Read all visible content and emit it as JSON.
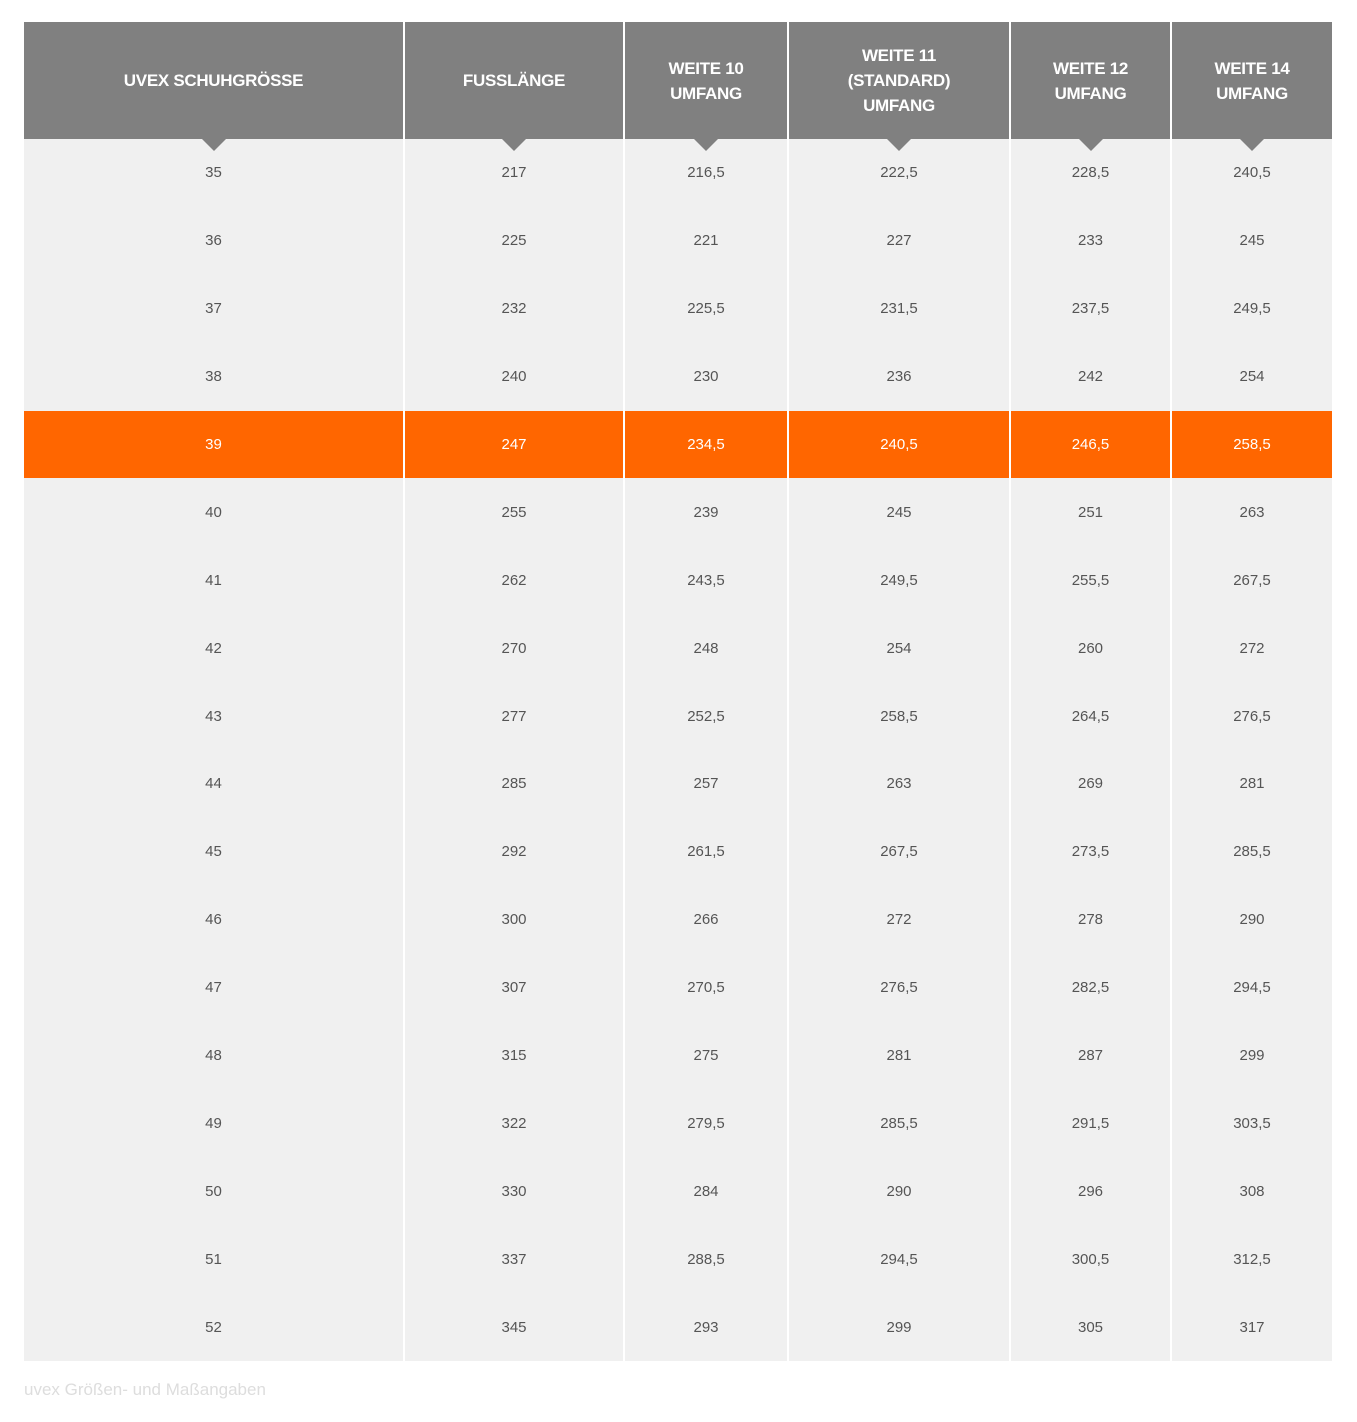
{
  "table": {
    "headers": [
      "UVEX SCHUHGRÖSSE",
      "FUSSLÄNGE",
      "WEITE 10 UMFANG",
      "WEITE 11 (STANDARD) UMFANG",
      "WEITE 12 UMFANG",
      "WEITE 14 UMFANG"
    ],
    "highlight_row": 4,
    "highlight_color": "#ff6600",
    "rows": [
      [
        "35",
        "217",
        "216,5",
        "222,5",
        "228,5",
        "240,5"
      ],
      [
        "36",
        "225",
        "221",
        "227",
        "233",
        "245"
      ],
      [
        "37",
        "232",
        "225,5",
        "231,5",
        "237,5",
        "249,5"
      ],
      [
        "38",
        "240",
        "230",
        "236",
        "242",
        "254"
      ],
      [
        "39",
        "247",
        "234,5",
        "240,5",
        "246,5",
        "258,5"
      ],
      [
        "40",
        "255",
        "239",
        "245",
        "251",
        "263"
      ],
      [
        "41",
        "262",
        "243,5",
        "249,5",
        "255,5",
        "267,5"
      ],
      [
        "42",
        "270",
        "248",
        "254",
        "260",
        "272"
      ],
      [
        "43",
        "277",
        "252,5",
        "258,5",
        "264,5",
        "276,5"
      ],
      [
        "44",
        "285",
        "257",
        "263",
        "269",
        "281"
      ],
      [
        "45",
        "292",
        "261,5",
        "267,5",
        "273,5",
        "285,5"
      ],
      [
        "46",
        "300",
        "266",
        "272",
        "278",
        "290"
      ],
      [
        "47",
        "307",
        "270,5",
        "276,5",
        "282,5",
        "294,5"
      ],
      [
        "48",
        "315",
        "275",
        "281",
        "287",
        "299"
      ],
      [
        "49",
        "322",
        "279,5",
        "285,5",
        "291,5",
        "303,5"
      ],
      [
        "50",
        "330",
        "284",
        "290",
        "296",
        "308"
      ],
      [
        "51",
        "337",
        "288,5",
        "294,5",
        "300,5",
        "312,5"
      ],
      [
        "52",
        "345",
        "293",
        "299",
        "305",
        "317"
      ]
    ]
  },
  "caption": "uvex Größen- und Maßangaben"
}
